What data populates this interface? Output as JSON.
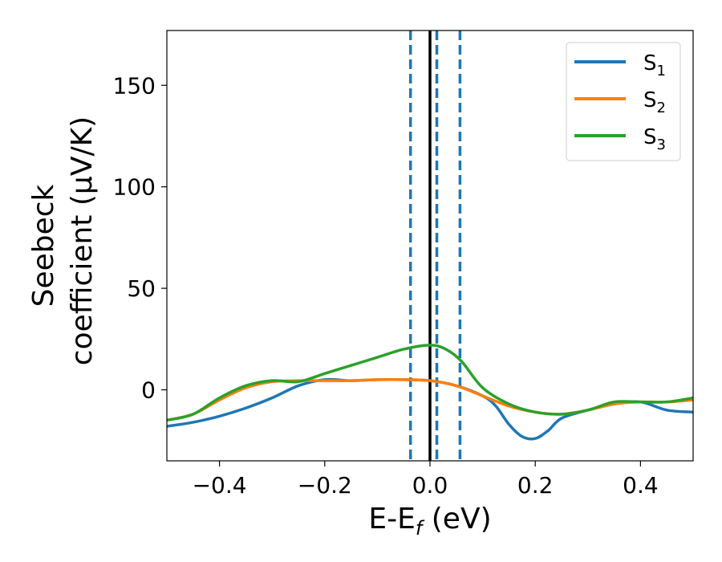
{
  "chart_data": {
    "type": "line",
    "xlabel": {
      "base": "E-E",
      "sub": "f",
      "rest": " (eV)"
    },
    "ylabel": {
      "line1": "Seebeck",
      "line2": "coefficient  (μV/K)"
    },
    "xlim": [
      -0.5,
      0.5
    ],
    "ylim": [
      -35,
      177
    ],
    "xticks": [
      {
        "value": -0.4,
        "label": "−0.4"
      },
      {
        "value": -0.2,
        "label": "−0.2"
      },
      {
        "value": 0.0,
        "label": "0.0"
      },
      {
        "value": 0.2,
        "label": "0.2"
      },
      {
        "value": 0.4,
        "label": "0.4"
      }
    ],
    "yticks": [
      {
        "value": 0,
        "label": "0"
      },
      {
        "value": 50,
        "label": "50"
      },
      {
        "value": 100,
        "label": "100"
      },
      {
        "value": 150,
        "label": "150"
      }
    ],
    "grid": false,
    "legend_position": "top-right",
    "vertical_lines": [
      {
        "x": 0.0,
        "style": "solid",
        "color": "#000000"
      },
      {
        "x": -0.037,
        "style": "dashed",
        "color": "#1f77b4"
      },
      {
        "x": 0.013,
        "style": "dashed",
        "color": "#1f77b4"
      },
      {
        "x": 0.057,
        "style": "dashed",
        "color": "#1f77b4"
      }
    ],
    "series": [
      {
        "name": {
          "base": "S",
          "sub": "1"
        },
        "color": "#1f77b4",
        "x": [
          -0.5,
          -0.45,
          -0.4,
          -0.35,
          -0.3,
          -0.25,
          -0.2,
          -0.15,
          -0.1,
          -0.05,
          0.0,
          0.05,
          0.1,
          0.125,
          0.15,
          0.175,
          0.2,
          0.225,
          0.25,
          0.3,
          0.35,
          0.4,
          0.45,
          0.5
        ],
        "y": [
          -18,
          -16,
          -13,
          -9,
          -4,
          2,
          5,
          4.5,
          5,
          5,
          4.5,
          2,
          -3,
          -8,
          -17,
          -23,
          -24,
          -20,
          -14,
          -10,
          -7,
          -6,
          -10,
          -11
        ]
      },
      {
        "name": {
          "base": "S",
          "sub": "2"
        },
        "color": "#ff7f0e",
        "x": [
          -0.5,
          -0.45,
          -0.4,
          -0.35,
          -0.3,
          -0.25,
          -0.2,
          -0.15,
          -0.1,
          -0.05,
          0.0,
          0.05,
          0.1,
          0.15,
          0.2,
          0.25,
          0.3,
          0.35,
          0.4,
          0.45,
          0.5
        ],
        "y": [
          -15,
          -12,
          -5,
          1,
          4,
          4.5,
          4.5,
          4.5,
          5,
          5,
          4.5,
          2,
          -3,
          -8,
          -11,
          -12,
          -10,
          -7,
          -6,
          -6,
          -5
        ]
      },
      {
        "name": {
          "base": "S",
          "sub": "3"
        },
        "color": "#2ca02c",
        "x": [
          -0.5,
          -0.45,
          -0.4,
          -0.35,
          -0.3,
          -0.25,
          -0.2,
          -0.15,
          -0.1,
          -0.05,
          0.0,
          0.03,
          0.06,
          0.1,
          0.15,
          0.2,
          0.25,
          0.3,
          0.35,
          0.4,
          0.45,
          0.5
        ],
        "y": [
          -15,
          -12,
          -4,
          2,
          4.5,
          4,
          8,
          12,
          16,
          20,
          22,
          20,
          14,
          1,
          -7,
          -11,
          -12,
          -10,
          -6,
          -6,
          -6,
          -4
        ]
      }
    ]
  }
}
